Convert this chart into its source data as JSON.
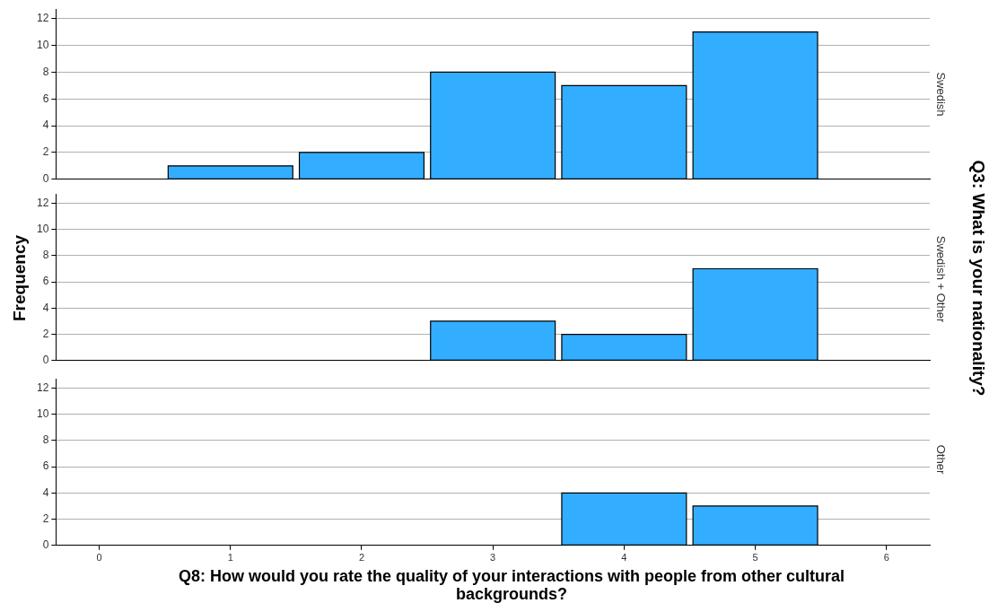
{
  "chart_data": [
    {
      "type": "histogram",
      "title": "Swedish",
      "bins": [
        0.5,
        1.5,
        2.5,
        3.5,
        4.5,
        5.5
      ],
      "values": [
        1,
        2,
        8,
        7,
        11
      ],
      "color": "#33adff",
      "xlim": [
        -0.33,
        6.33
      ],
      "xticks": [
        0,
        1,
        2,
        3,
        4,
        5,
        6
      ],
      "ylim": [
        0,
        12.7
      ],
      "yticks": [
        0,
        2,
        4,
        6,
        8,
        10,
        12
      ],
      "grid": "y",
      "tick_labels": "y"
    },
    {
      "type": "histogram",
      "title": "Swedish + Other",
      "ylabel": "Frequency",
      "y2label": "Q3: What is your nationality?",
      "bins": [
        0.5,
        1.5,
        2.5,
        3.5,
        4.5,
        5.5
      ],
      "values": [
        0,
        0,
        3,
        2,
        7
      ],
      "color": "#33adff",
      "xlim": [
        -0.33,
        6.33
      ],
      "xticks": [
        0,
        1,
        2,
        3,
        4,
        5,
        6
      ],
      "ylim": [
        0,
        12.7
      ],
      "yticks": [
        0,
        2,
        4,
        6,
        8,
        10,
        12
      ],
      "grid": "y",
      "tick_labels": "y"
    },
    {
      "type": "histogram",
      "title": "Other",
      "xlabel": "Q8: How would you rate the quality of your interactions with people from other cultural backgrounds?",
      "bins": [
        0.5,
        1.5,
        2.5,
        3.5,
        4.5,
        5.5
      ],
      "values": [
        0,
        0,
        0,
        4,
        3
      ],
      "color": "#33adff",
      "xlim": [
        -0.33,
        6.33
      ],
      "xticks": [
        0,
        1,
        2,
        3,
        4,
        5,
        6
      ],
      "ylim": [
        0,
        12.7
      ],
      "yticks": [
        0,
        2,
        4,
        6,
        8,
        10,
        12
      ],
      "grid": "y"
    }
  ]
}
